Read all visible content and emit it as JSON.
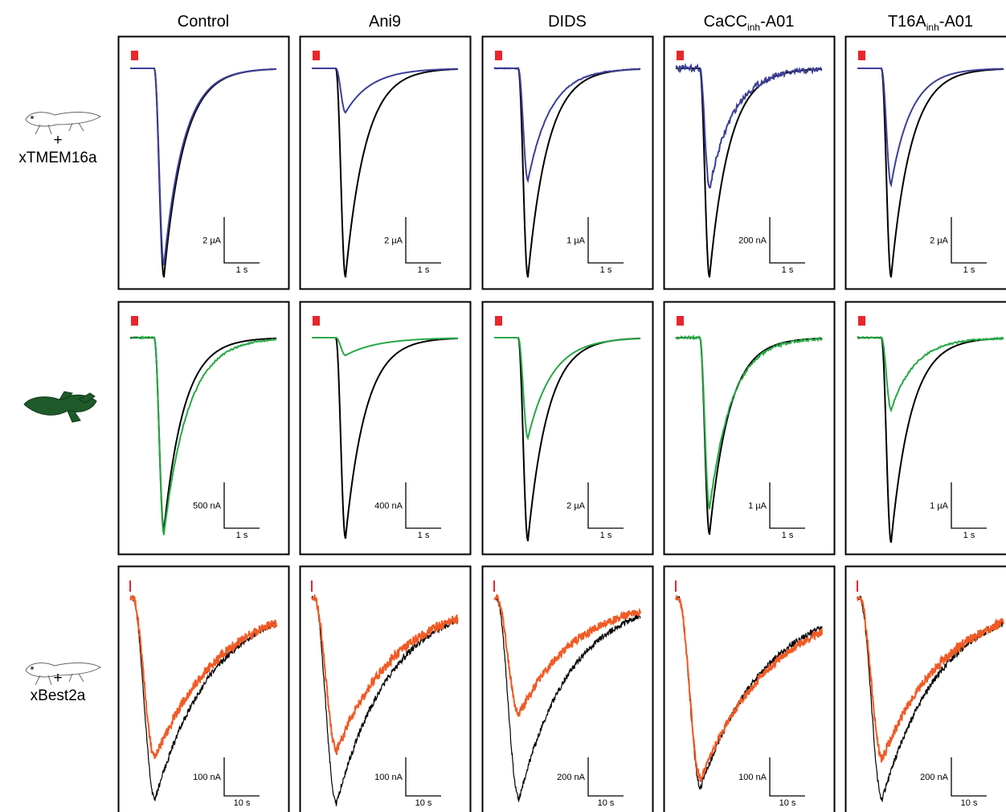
{
  "columns": [
    {
      "base": "Control"
    },
    {
      "base": "Ani9"
    },
    {
      "base": "DIDS"
    },
    {
      "base": "CaCC",
      "sub": "inh",
      "suffix": "-A01"
    },
    {
      "base": "T16A",
      "sub": "inh",
      "suffix": "-A01"
    }
  ],
  "rows": [
    {
      "plus": "+",
      "construct": "xTMEM16a"
    },
    {},
    {
      "plus": "+",
      "construct": "xBest2a"
    }
  ],
  "panels": [
    [
      {
        "current": "2 µA",
        "time": "1 s"
      },
      {
        "current": "2 µA",
        "time": "1 s"
      },
      {
        "current": "1 µA",
        "time": "1 s"
      },
      {
        "current": "200 nA",
        "time": "1 s"
      },
      {
        "current": "2 µA",
        "time": "1 s"
      }
    ],
    [
      {
        "current": "500 nA",
        "time": "1 s"
      },
      {
        "current": "400 nA",
        "time": "1 s"
      },
      {
        "current": "2 µA",
        "time": "1 s"
      },
      {
        "current": "1 µA",
        "time": "1 s"
      },
      {
        "current": "1 µA",
        "time": "1 s"
      }
    ],
    [
      {
        "current": "100 nA",
        "time": "10 s"
      },
      {
        "current": "100 nA",
        "time": "10 s"
      },
      {
        "current": "200 nA",
        "time": "10 s"
      },
      {
        "current": "100 nA",
        "time": "10 s"
      },
      {
        "current": "200 nA",
        "time": "10 s"
      }
    ]
  ]
}
